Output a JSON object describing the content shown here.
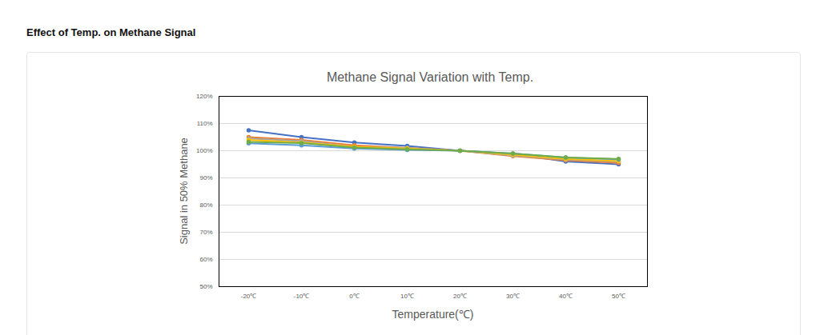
{
  "page_header": "Effect of Temp. on Methane Signal",
  "chart_data": {
    "type": "line",
    "title": "Methane Signal Variation with Temp.",
    "x_label": "Temperature(℃)",
    "y_label": "Signal in 50% Methane",
    "categories": [
      "-20℃",
      "-10℃",
      "0℃",
      "10℃",
      "20℃",
      "30℃",
      "40℃",
      "50℃"
    ],
    "series": [
      {
        "color": "#4472c4",
        "values": [
          107.5,
          105,
          103,
          101.8,
          100,
          98.8,
          96,
          95
        ]
      },
      {
        "color": "#ed7d31",
        "values": [
          105,
          104,
          102,
          101,
          100,
          98,
          96.5,
          95.5
        ]
      },
      {
        "color": "#a5a5a5",
        "values": [
          104.5,
          103.5,
          101.5,
          101,
          100,
          98.2,
          96.8,
          96
        ]
      },
      {
        "color": "#ffc000",
        "values": [
          104,
          103,
          101.5,
          100.8,
          100,
          98.5,
          97,
          96.2
        ]
      },
      {
        "color": "#5b9bd5",
        "values": [
          102.7,
          102,
          100.8,
          100.3,
          100,
          99,
          97.5,
          96.8
        ]
      },
      {
        "color": "#70ad47",
        "values": [
          103.2,
          102.8,
          101.2,
          100.5,
          100,
          99,
          97.5,
          97
        ]
      }
    ],
    "ylim": [
      50,
      120
    ],
    "yticks": [
      {
        "value": 50,
        "label": "50%"
      },
      {
        "value": 60,
        "label": "60%"
      },
      {
        "value": 70,
        "label": "70%"
      },
      {
        "value": 80,
        "label": "80%"
      },
      {
        "value": 90,
        "label": "90%"
      },
      {
        "value": 100,
        "label": "100%"
      },
      {
        "value": 110,
        "label": "110%"
      },
      {
        "value": 120,
        "label": "120%"
      }
    ],
    "grid": true,
    "marker": "circle"
  }
}
